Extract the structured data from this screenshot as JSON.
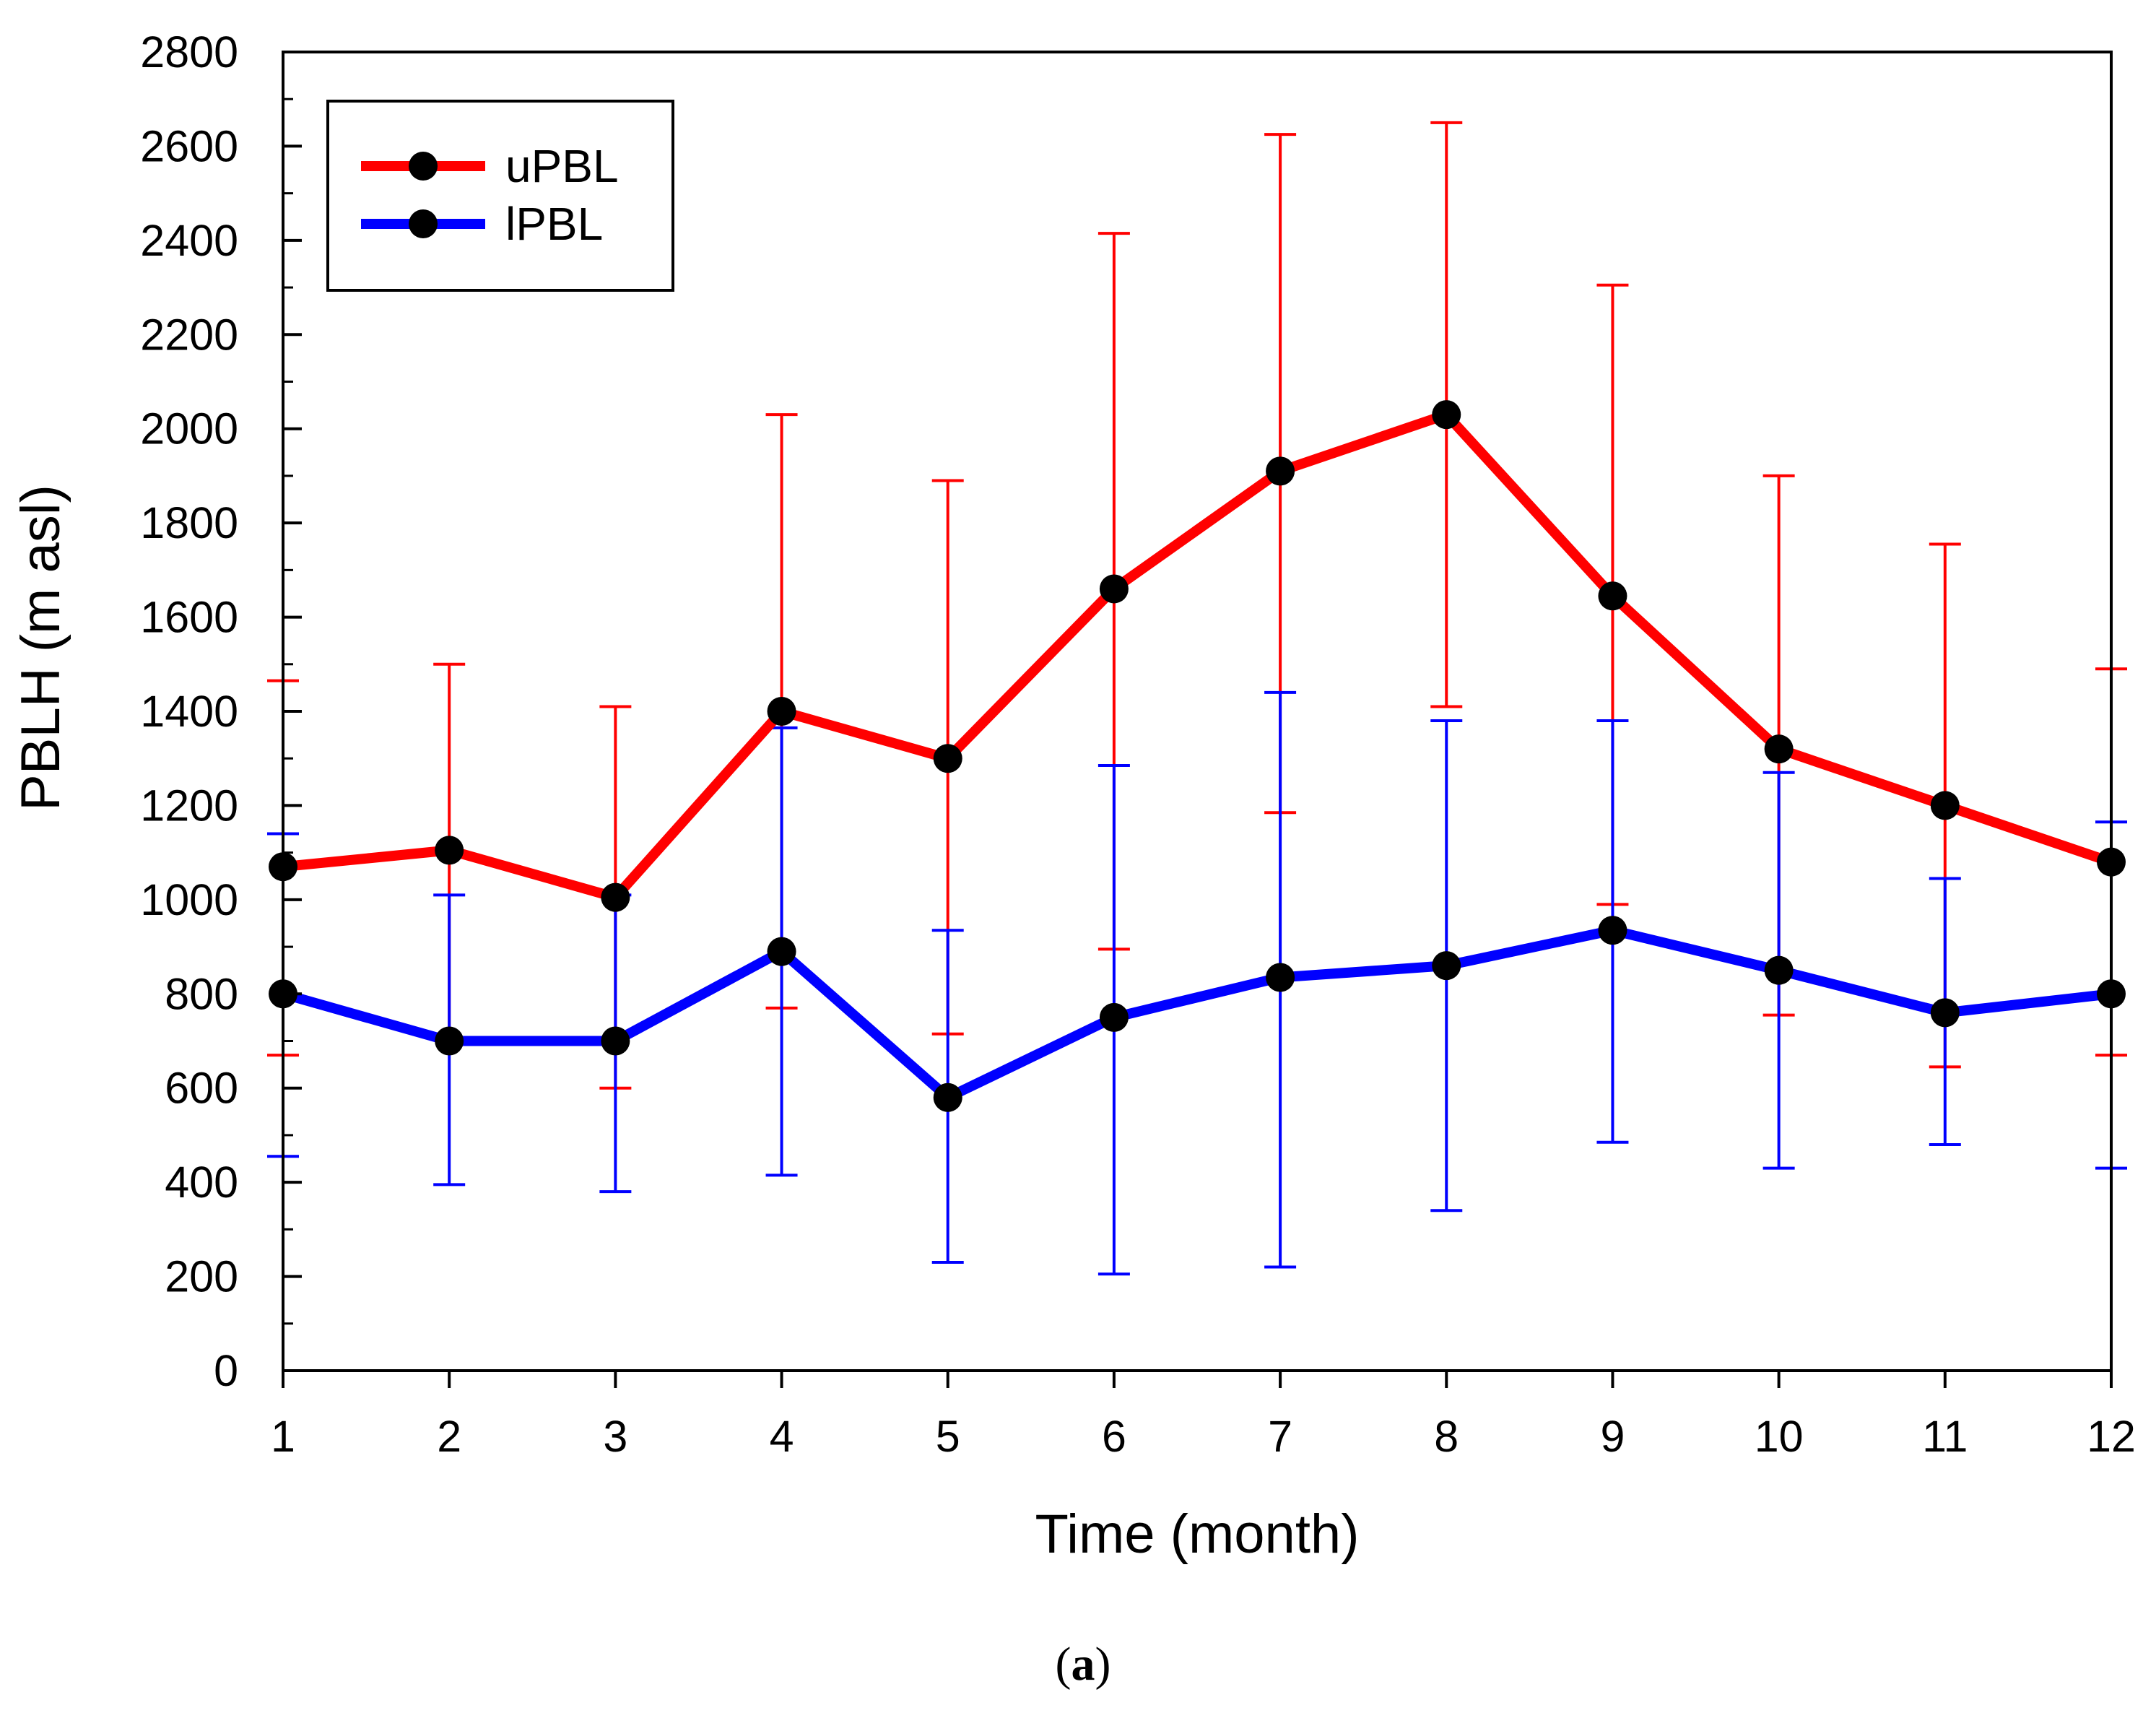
{
  "chart_data": {
    "type": "line",
    "title": "",
    "xlabel": "Time (month)",
    "ylabel": "PBLH (m asl)",
    "panel_label": "(a)",
    "panel_label_open": "(",
    "panel_label_letter": "a",
    "panel_label_close": ")",
    "x": [
      1,
      2,
      3,
      4,
      5,
      6,
      7,
      8,
      9,
      10,
      11,
      12
    ],
    "x_ticks": [
      1,
      2,
      3,
      4,
      5,
      6,
      7,
      8,
      9,
      10,
      11,
      12
    ],
    "xlim": [
      1,
      12
    ],
    "ylim": [
      0,
      2800
    ],
    "y_ticks": [
      0,
      200,
      400,
      600,
      800,
      1000,
      1200,
      1400,
      1600,
      1800,
      2000,
      2200,
      2400,
      2600,
      2800
    ],
    "legend_position": "top-left",
    "series": [
      {
        "name": "uPBL",
        "color": "#ff0000",
        "values": [
          1070,
          1105,
          1005,
          1400,
          1300,
          1660,
          1910,
          2030,
          1645,
          1320,
          1200,
          1080
        ],
        "error_upper": [
          1465,
          1500,
          1410,
          2030,
          1890,
          2415,
          2625,
          2650,
          2305,
          1900,
          1755,
          1490
        ],
        "error_lower": [
          670,
          705,
          600,
          770,
          715,
          895,
          1185,
          1410,
          990,
          755,
          645,
          670
        ]
      },
      {
        "name": "lPBL",
        "color": "#0000ff",
        "values": [
          800,
          700,
          700,
          890,
          580,
          750,
          835,
          860,
          935,
          850,
          760,
          800
        ],
        "error_upper": [
          1140,
          1010,
          1010,
          1365,
          935,
          1285,
          1440,
          1380,
          1380,
          1270,
          1045,
          1165
        ],
        "error_lower": [
          455,
          395,
          380,
          415,
          230,
          205,
          220,
          340,
          485,
          430,
          480,
          430
        ]
      }
    ]
  }
}
